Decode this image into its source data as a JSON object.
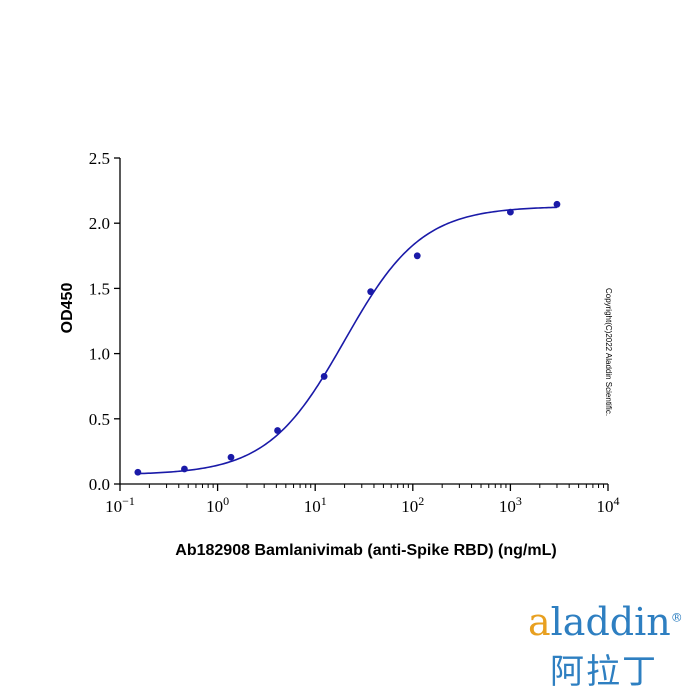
{
  "chart_data": {
    "type": "scatter",
    "xscale": "log",
    "xlim": [
      0.1,
      10000
    ],
    "ylim": [
      0.0,
      2.5
    ],
    "xlabel": "Ab182908 Bamlanivimab (anti-Spike RBD) (ng/mL)",
    "ylabel": "OD450",
    "x_ticks": [
      {
        "base": "10",
        "exp": "−1",
        "value": 0.1
      },
      {
        "base": "10",
        "exp": "0",
        "value": 1
      },
      {
        "base": "10",
        "exp": "1",
        "value": 10
      },
      {
        "base": "10",
        "exp": "2",
        "value": 100
      },
      {
        "base": "10",
        "exp": "3",
        "value": 1000
      },
      {
        "base": "10",
        "exp": "4",
        "value": 10000
      }
    ],
    "y_ticks": [
      "0.0",
      "0.5",
      "1.0",
      "1.5",
      "2.0",
      "2.5"
    ],
    "series": [
      {
        "x": [
          0.1524,
          0.4572,
          1.372,
          4.115,
          12.35,
          37.04,
          111.1,
          1000,
          3000
        ],
        "y": [
          0.09,
          0.115,
          0.205,
          0.41,
          0.825,
          1.475,
          1.75,
          2.085,
          2.145
        ],
        "fit": "4PL",
        "color": "#1a1aa8"
      }
    ],
    "grid": false
  },
  "copyright": "Copyright(C)2022 Aladdin Scientific.",
  "logo": {
    "latin_a": "a",
    "latin_rest": "laddin",
    "reg": "®",
    "chinese": "阿拉丁"
  }
}
